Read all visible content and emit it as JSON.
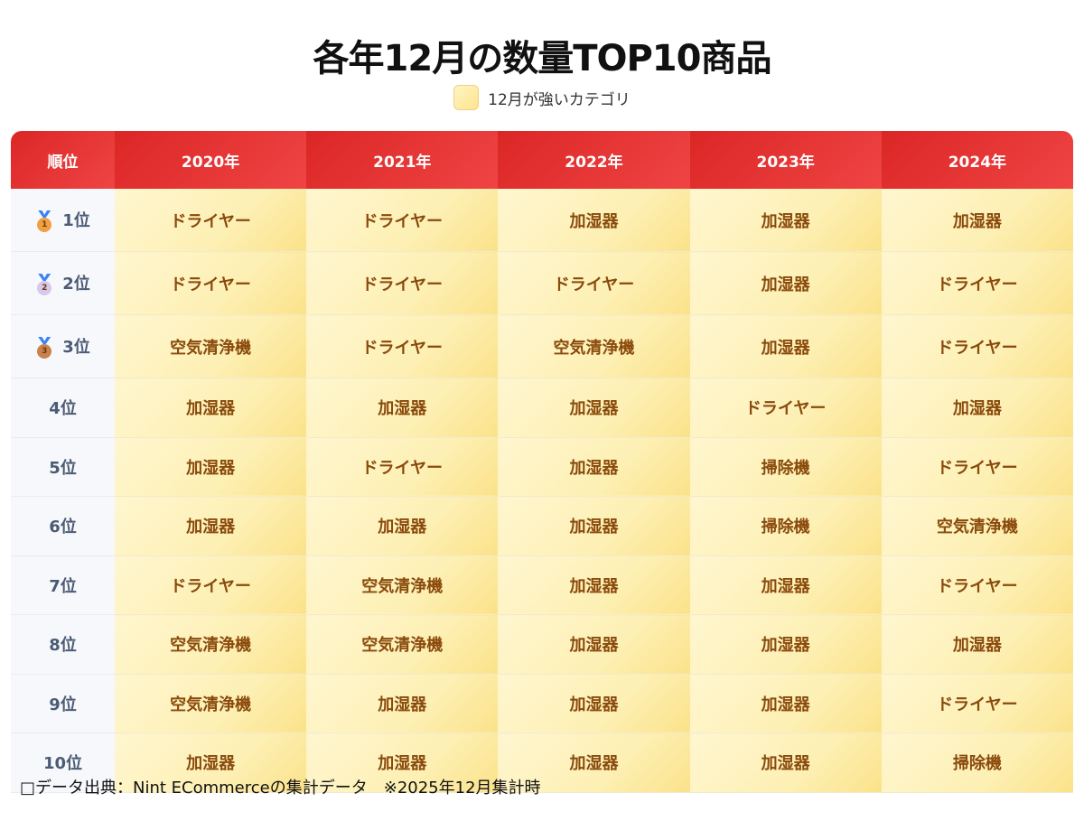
{
  "title": "各年12月の数量TOP10商品",
  "legend": {
    "label": "12月が強いカテゴリ",
    "color": "#fde48e"
  },
  "colors": {
    "header": "#dc2626",
    "cell_text": "#8a4a0c",
    "rank_text": "#4b5b75"
  },
  "header": [
    "順位",
    "2020年",
    "2021年",
    "2022年",
    "2023年",
    "2024年"
  ],
  "rows": [
    {
      "rank": "1位",
      "medal": {
        "icon": "gold-medal-icon",
        "num": "1",
        "color": "#f0a040"
      },
      "items": [
        "ドライヤー",
        "ドライヤー",
        "加湿器",
        "加湿器",
        "加湿器"
      ]
    },
    {
      "rank": "2位",
      "medal": {
        "icon": "silver-medal-icon",
        "num": "2",
        "color": "#d8c8ec"
      },
      "items": [
        "ドライヤー",
        "ドライヤー",
        "ドライヤー",
        "加湿器",
        "ドライヤー"
      ]
    },
    {
      "rank": "3位",
      "medal": {
        "icon": "bronze-medal-icon",
        "num": "3",
        "color": "#c9814e"
      },
      "items": [
        "空気清浄機",
        "ドライヤー",
        "空気清浄機",
        "加湿器",
        "ドライヤー"
      ]
    },
    {
      "rank": "4位",
      "items": [
        "加湿器",
        "加湿器",
        "加湿器",
        "ドライヤー",
        "加湿器"
      ]
    },
    {
      "rank": "5位",
      "items": [
        "加湿器",
        "ドライヤー",
        "加湿器",
        "掃除機",
        "ドライヤー"
      ]
    },
    {
      "rank": "6位",
      "items": [
        "加湿器",
        "加湿器",
        "加湿器",
        "掃除機",
        "空気清浄機"
      ]
    },
    {
      "rank": "7位",
      "items": [
        "ドライヤー",
        "空気清浄機",
        "加湿器",
        "加湿器",
        "ドライヤー"
      ]
    },
    {
      "rank": "8位",
      "items": [
        "空気清浄機",
        "空気清浄機",
        "加湿器",
        "加湿器",
        "加湿器"
      ]
    },
    {
      "rank": "9位",
      "items": [
        "空気清浄機",
        "加湿器",
        "加湿器",
        "加湿器",
        "ドライヤー"
      ]
    },
    {
      "rank": "10位",
      "items": [
        "加湿器",
        "加湿器",
        "加湿器",
        "加湿器",
        "掃除機"
      ]
    }
  ],
  "footer": "□データ出典：Nint ECommerceの集計データ　※2025年12月集計時"
}
